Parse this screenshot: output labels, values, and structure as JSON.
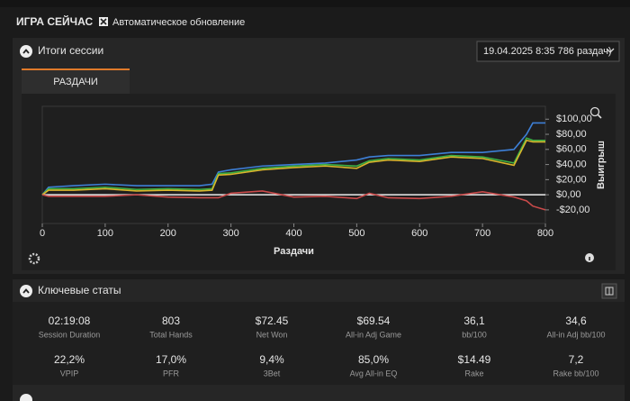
{
  "header": {
    "title": "ИГРА СЕЙЧАС",
    "auto_refresh": "Автоматическое обновление"
  },
  "session_panel": {
    "title": "Итоги сессии",
    "selector": "19.04.2025 8:35 786 раздач)",
    "tab": "РАЗДАЧИ"
  },
  "chart_data": {
    "type": "line",
    "x": [
      0,
      10,
      50,
      100,
      150,
      200,
      250,
      270,
      280,
      300,
      350,
      400,
      450,
      500,
      520,
      550,
      600,
      650,
      700,
      750,
      770,
      780,
      800
    ],
    "series": [
      {
        "color": "#3d7fd6",
        "values": [
          0,
          10,
          12,
          14,
          12,
          12,
          12,
          14,
          30,
          33,
          38,
          40,
          42,
          46,
          50,
          52,
          52,
          56,
          56,
          60,
          80,
          95,
          95
        ]
      },
      {
        "color": "#3cb043",
        "values": [
          0,
          8,
          8,
          10,
          7,
          8,
          7,
          8,
          28,
          29,
          35,
          38,
          40,
          38,
          45,
          48,
          46,
          52,
          50,
          42,
          75,
          72,
          72
        ]
      },
      {
        "color": "#d9b52c",
        "values": [
          0,
          6,
          6,
          8,
          5,
          6,
          5,
          6,
          26,
          27,
          33,
          36,
          38,
          35,
          43,
          46,
          44,
          50,
          48,
          39,
          72,
          70,
          70
        ]
      },
      {
        "color": "#c94a4a",
        "values": [
          0,
          -2,
          -2,
          -2,
          0,
          -3,
          -4,
          -4,
          -4,
          2,
          5,
          -3,
          -2,
          -5,
          2,
          -4,
          -5,
          -2,
          4,
          -3,
          -8,
          -15,
          -20
        ]
      }
    ],
    "xlabel": "Раздачи",
    "ylabel": "Выигрыш",
    "xlim": [
      0,
      800
    ],
    "ylim": [
      -38,
      117
    ],
    "xticks": [
      0,
      100,
      200,
      300,
      400,
      500,
      600,
      700,
      800
    ],
    "yticks": [
      {
        "value": -20,
        "label": "-$20,00"
      },
      {
        "value": 0,
        "label": "$0,00"
      },
      {
        "value": 20,
        "label": "$20,00"
      },
      {
        "value": 40,
        "label": "$40,00"
      },
      {
        "value": 60,
        "label": "$60,00"
      },
      {
        "value": 80,
        "label": "$80,00"
      },
      {
        "value": 100,
        "label": "$100,00"
      }
    ]
  },
  "key_stats": {
    "title": "Ключевые статы",
    "items": [
      {
        "value": "02:19:08",
        "label": "Session Duration"
      },
      {
        "value": "803",
        "label": "Total Hands"
      },
      {
        "value": "$72.45",
        "label": "Net Won"
      },
      {
        "value": "$69.54",
        "label": "All-in Adj Game"
      },
      {
        "value": "36,1",
        "label": "bb/100"
      },
      {
        "value": "34,6",
        "label": "All-in Adj bb/100"
      },
      {
        "value": "22,2%",
        "label": "VPIP"
      },
      {
        "value": "17,0%",
        "label": "PFR"
      },
      {
        "value": "9,4%",
        "label": "3Bet"
      },
      {
        "value": "85,0%",
        "label": "Avg All-in EQ"
      },
      {
        "value": "$14.49",
        "label": "Rake"
      },
      {
        "value": "7,2",
        "label": "Rake bb/100"
      }
    ]
  }
}
